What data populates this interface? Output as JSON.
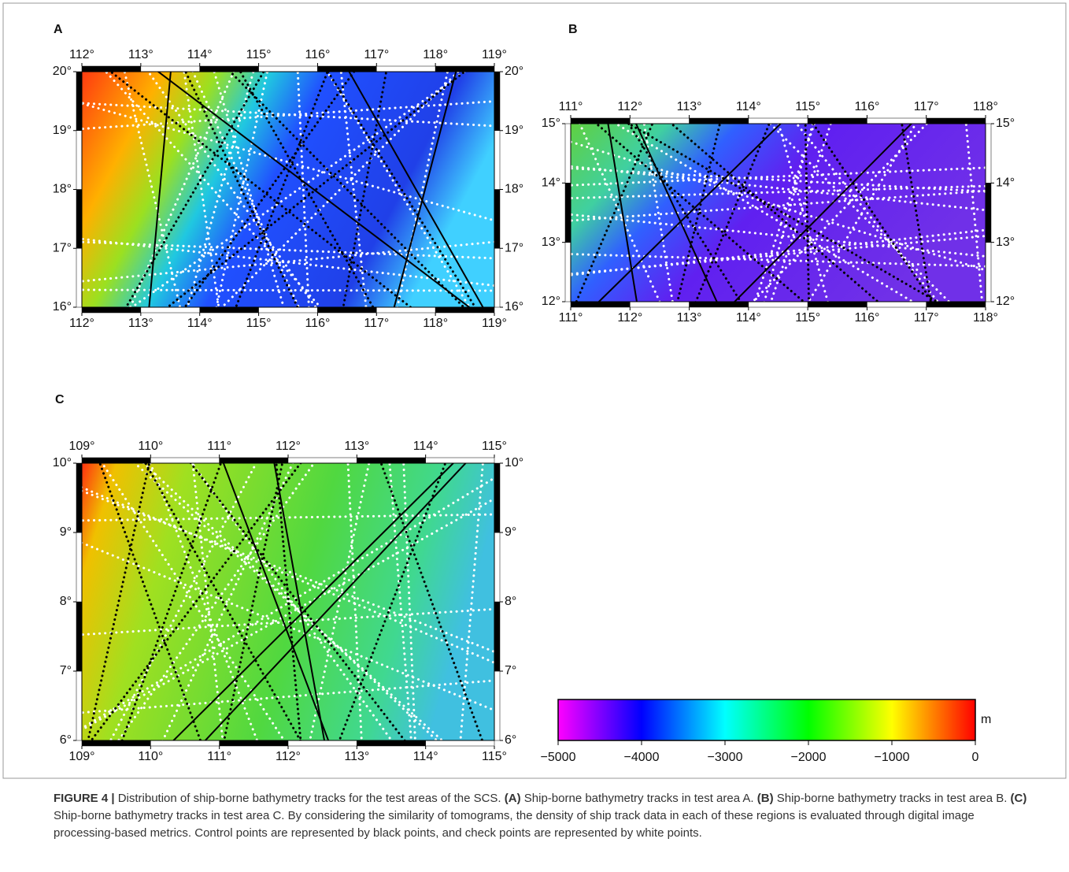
{
  "panels": [
    {
      "label": "A",
      "lon_ticks": [
        {
          "value": 112,
          "label": "112°"
        },
        {
          "value": 113,
          "label": "113°"
        },
        {
          "value": 114,
          "label": "114°"
        },
        {
          "value": 115,
          "label": "115°"
        },
        {
          "value": 116,
          "label": "116°"
        },
        {
          "value": 117,
          "label": "117°"
        },
        {
          "value": 118,
          "label": "118°"
        },
        {
          "value": 119,
          "label": "119°"
        }
      ],
      "lat_ticks": [
        {
          "value": 16,
          "label": "16°"
        },
        {
          "value": 17,
          "label": "17°"
        },
        {
          "value": 18,
          "label": "18°"
        },
        {
          "value": 19,
          "label": "19°"
        },
        {
          "value": 20,
          "label": "20°"
        }
      ]
    },
    {
      "label": "B",
      "lon_ticks": [
        {
          "value": 111,
          "label": "111°"
        },
        {
          "value": 112,
          "label": "112°"
        },
        {
          "value": 113,
          "label": "113°"
        },
        {
          "value": 114,
          "label": "114°"
        },
        {
          "value": 115,
          "label": "115°"
        },
        {
          "value": 116,
          "label": "116°"
        },
        {
          "value": 117,
          "label": "117°"
        },
        {
          "value": 118,
          "label": "118°"
        }
      ],
      "lat_ticks": [
        {
          "value": 12,
          "label": "12°"
        },
        {
          "value": 13,
          "label": "13°"
        },
        {
          "value": 14,
          "label": "14°"
        },
        {
          "value": 15,
          "label": "15°"
        }
      ]
    },
    {
      "label": "C",
      "lon_ticks": [
        {
          "value": 109,
          "label": "109°"
        },
        {
          "value": 110,
          "label": "110°"
        },
        {
          "value": 111,
          "label": "111°"
        },
        {
          "value": 112,
          "label": "112°"
        },
        {
          "value": 113,
          "label": "113°"
        },
        {
          "value": 114,
          "label": "114°"
        },
        {
          "value": 115,
          "label": "115°"
        }
      ],
      "lat_ticks": [
        {
          "value": 6,
          "label": "6°"
        },
        {
          "value": 7,
          "label": "7°"
        },
        {
          "value": 8,
          "label": "8°"
        },
        {
          "value": 9,
          "label": "9°"
        },
        {
          "value": 10,
          "label": "10°"
        }
      ]
    }
  ],
  "colorbar": {
    "unit": "m",
    "ticks": [
      {
        "value": -5000,
        "label": "−5000"
      },
      {
        "value": -4000,
        "label": "−4000"
      },
      {
        "value": -3000,
        "label": "−3000"
      },
      {
        "value": -2000,
        "label": "−2000"
      },
      {
        "value": -1000,
        "label": "−1000"
      },
      0
    ]
  },
  "caption": {
    "segments": [
      {
        "text": "FIGURE 4 |",
        "bold": true
      },
      {
        "text": " Distribution of ship-borne bathymetry tracks for the test areas of the SCS. ",
        "bold": false
      },
      {
        "text": "(A)",
        "bold": true
      },
      {
        "text": " Ship-borne bathymetry tracks in test area A. ",
        "bold": false
      },
      {
        "text": "(B)",
        "bold": true
      },
      {
        "text": " Ship-borne bathymetry tracks in test area B. ",
        "bold": false
      },
      {
        "text": "(C)",
        "bold": true
      },
      {
        "text": " Ship-borne bathymetry tracks in test area C. By considering the similarity of tomograms, the density of ship track data in each of these regions is evaluated through digital image processing-based metrics. Control points are represented by black points, and check points are represented by white points.",
        "bold": false
      }
    ]
  }
}
